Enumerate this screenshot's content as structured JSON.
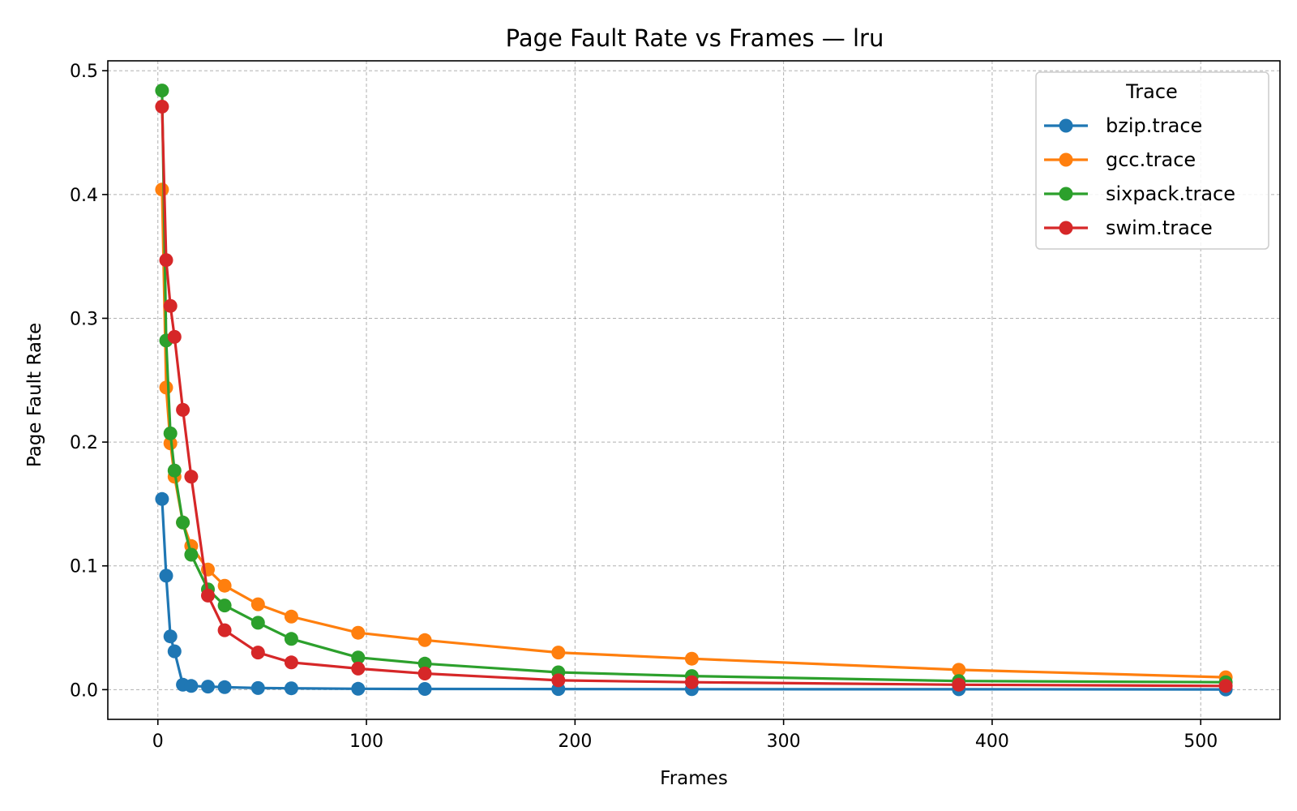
{
  "chart_data": {
    "type": "line",
    "title": "Page Fault Rate vs Frames — lru",
    "xlabel": "Frames",
    "ylabel": "Page Fault Rate",
    "xlim": [
      -24,
      538
    ],
    "ylim": [
      -0.024,
      0.508
    ],
    "xticks": [
      0,
      100,
      200,
      300,
      400,
      500
    ],
    "xtick_labels": [
      "0",
      "100",
      "200",
      "300",
      "400",
      "500"
    ],
    "yticks": [
      0.0,
      0.1,
      0.2,
      0.3,
      0.4,
      0.5
    ],
    "ytick_labels": [
      "0.0",
      "0.1",
      "0.2",
      "0.3",
      "0.4",
      "0.5"
    ],
    "grid": true,
    "legend": {
      "title": "Trace",
      "placement": "top-right"
    },
    "x": [
      2,
      4,
      6,
      8,
      12,
      16,
      24,
      32,
      48,
      64,
      96,
      128,
      192,
      256,
      384,
      512
    ],
    "series": [
      {
        "name": "bzip.trace",
        "color": "#1f77b4",
        "values": [
          0.154,
          0.092,
          0.043,
          0.031,
          0.004,
          0.003,
          0.0025,
          0.002,
          0.0013,
          0.0011,
          0.0007,
          0.0006,
          0.0005,
          0.0004,
          0.0003,
          0.0002
        ]
      },
      {
        "name": "gcc.trace",
        "color": "#ff7f0e",
        "values": [
          0.404,
          0.244,
          0.199,
          0.172,
          0.135,
          0.116,
          0.097,
          0.084,
          0.069,
          0.059,
          0.046,
          0.04,
          0.03,
          0.025,
          0.016,
          0.01
        ]
      },
      {
        "name": "sixpack.trace",
        "color": "#2ca02c",
        "values": [
          0.484,
          0.282,
          0.207,
          0.177,
          0.135,
          0.109,
          0.081,
          0.068,
          0.054,
          0.041,
          0.026,
          0.021,
          0.014,
          0.011,
          0.007,
          0.006
        ]
      },
      {
        "name": "swim.trace",
        "color": "#d62728",
        "values": [
          0.471,
          0.347,
          0.31,
          0.285,
          0.226,
          0.172,
          0.076,
          0.048,
          0.03,
          0.022,
          0.017,
          0.013,
          0.0075,
          0.006,
          0.004,
          0.003
        ]
      }
    ]
  }
}
